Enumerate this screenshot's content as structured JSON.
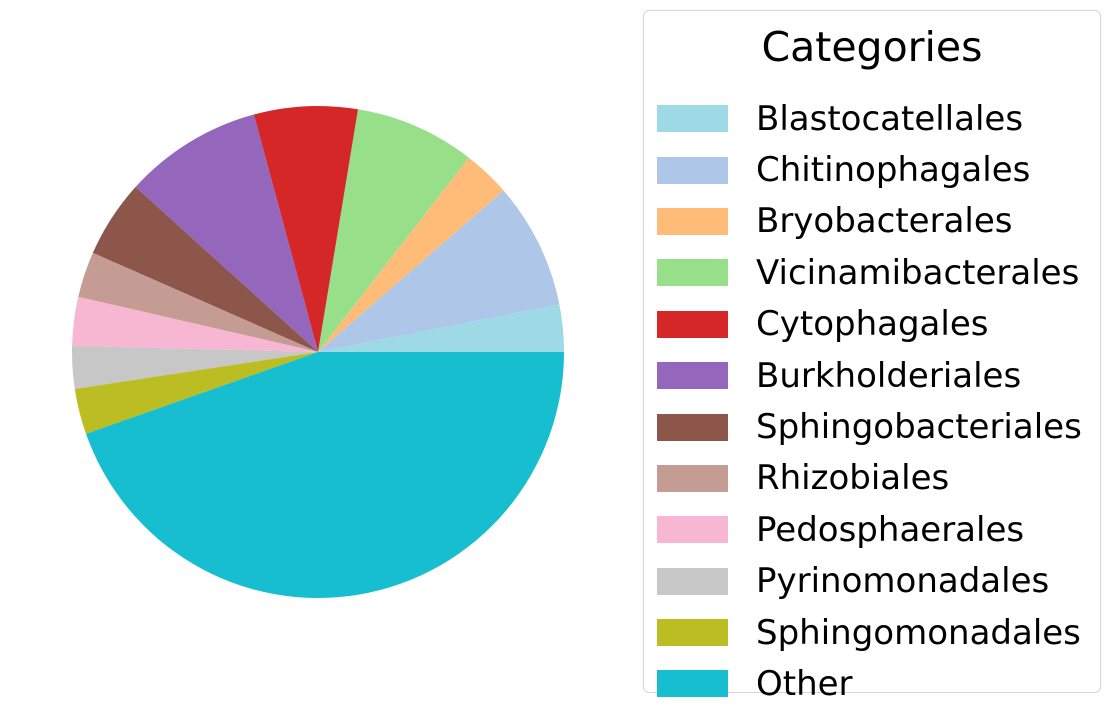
{
  "chart_data": {
    "type": "pie",
    "legend": {
      "title": "Categories",
      "placement": "right"
    },
    "start_angle_deg": 0,
    "direction": "counterclockwise",
    "slices": [
      {
        "label": "Blastocatellales",
        "value": 3.1,
        "color": "#9edae5"
      },
      {
        "label": "Chitinophagales",
        "value": 8.3,
        "color": "#aec7e8"
      },
      {
        "label": "Bryobacterales",
        "value": 3.1,
        "color": "#ffbb78"
      },
      {
        "label": "Vicinamibacterales",
        "value": 7.9,
        "color": "#98df8a"
      },
      {
        "label": "Cytophagales",
        "value": 6.8,
        "color": "#d62728"
      },
      {
        "label": "Burkholderiales",
        "value": 9.1,
        "color": "#9467bd"
      },
      {
        "label": "Sphingobacteriales",
        "value": 5.1,
        "color": "#8c564b"
      },
      {
        "label": "Rhizobiales",
        "value": 3.0,
        "color": "#c49c94"
      },
      {
        "label": "Pedosphaerales",
        "value": 3.2,
        "color": "#f7b6d2"
      },
      {
        "label": "Pyrinomonadales",
        "value": 2.8,
        "color": "#c7c7c7"
      },
      {
        "label": "Sphingomonadales",
        "value": 3.0,
        "color": "#bcbd22"
      },
      {
        "label": "Other",
        "value": 44.6,
        "color": "#17becf"
      }
    ]
  }
}
